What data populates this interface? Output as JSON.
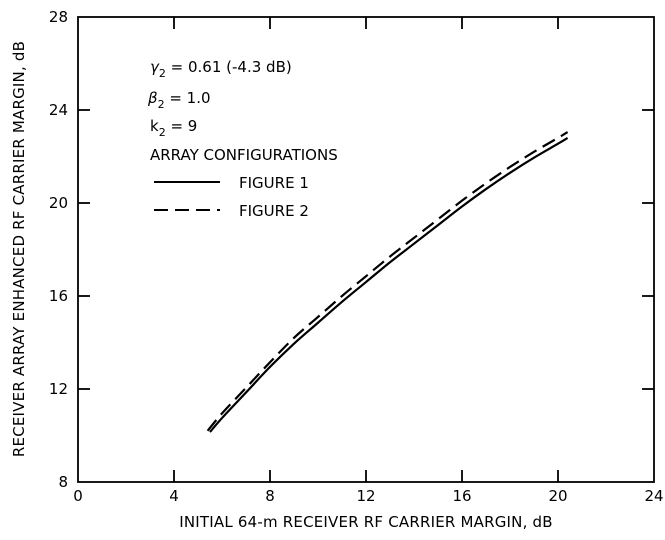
{
  "chart_data": {
    "type": "line",
    "xlabel": "INITIAL 64-m RECEIVER RF CARRIER MARGIN, dB",
    "ylabel": "RECEIVER ARRAY ENHANCED RF CARRIER MARGIN, dB",
    "xlim": [
      0,
      24
    ],
    "ylim": [
      8,
      28
    ],
    "x_ticks": [
      0,
      4,
      8,
      12,
      16,
      20,
      24
    ],
    "y_ticks": [
      8,
      12,
      16,
      20,
      24,
      28
    ],
    "x_tick_labels": [
      "0",
      "4",
      "8",
      "12",
      "16",
      "20",
      "24"
    ],
    "y_tick_labels": [
      "8",
      "12",
      "16",
      "20",
      "24",
      "28"
    ],
    "grid": false,
    "annotations": {
      "gamma": {
        "sym": "γ",
        "sub": "2",
        "text": " = 0.61 (-4.3 dB)"
      },
      "beta": {
        "sym": "β",
        "sub": "2",
        "text": " = 1.0"
      },
      "k": {
        "sym": "k",
        "sub": "2",
        "text": " = 9"
      },
      "legend_title": "ARRAY CONFIGURATIONS"
    },
    "legend_position": "top-left",
    "series": [
      {
        "name": "FIGURE 1",
        "style": "solid",
        "x": [
          5.5,
          6,
          7,
          8,
          9,
          10,
          11,
          12,
          13,
          14,
          15,
          16,
          17,
          18,
          19,
          20,
          20.4
        ],
        "y": [
          10.15,
          10.75,
          11.85,
          12.95,
          13.95,
          14.85,
          15.75,
          16.6,
          17.45,
          18.25,
          19.05,
          19.85,
          20.6,
          21.3,
          21.95,
          22.55,
          22.8
        ]
      },
      {
        "name": "FIGURE 2",
        "style": "dashed",
        "x": [
          5.4,
          6,
          7,
          8,
          9,
          10,
          11,
          12,
          13,
          14,
          15,
          16,
          17,
          18,
          19,
          20,
          20.4
        ],
        "y": [
          10.2,
          10.95,
          12.05,
          13.15,
          14.2,
          15.1,
          16.0,
          16.85,
          17.7,
          18.5,
          19.3,
          20.1,
          20.85,
          21.55,
          22.2,
          22.8,
          23.05
        ]
      }
    ]
  }
}
